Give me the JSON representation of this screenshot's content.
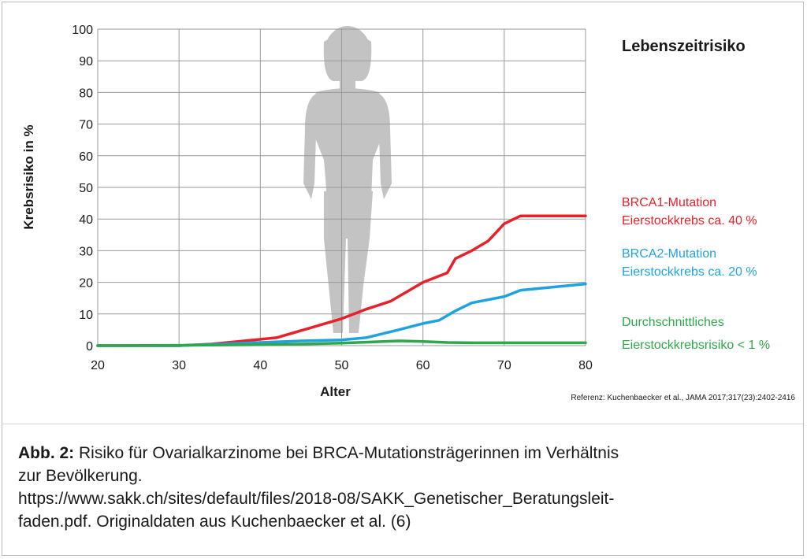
{
  "chart_data": {
    "type": "line",
    "title": "Lebenszeitrisiko",
    "xlabel": "Alter",
    "ylabel": "Krebsrisiko in %",
    "xlim": [
      20,
      80
    ],
    "ylim": [
      0,
      100
    ],
    "xticks": [
      20,
      30,
      40,
      50,
      60,
      70,
      80
    ],
    "yticks": [
      0,
      10,
      20,
      30,
      40,
      50,
      60,
      70,
      80,
      90,
      100
    ],
    "grid": true,
    "series": [
      {
        "name": "BRCA1-Mutation",
        "label_lines": [
          "BRCA1-Mutation",
          "Eierstockkrebs ca. 40 %"
        ],
        "color": "#e8202a",
        "x": [
          20,
          25,
          30,
          34,
          38,
          42,
          46,
          50,
          53,
          56,
          58,
          60,
          63,
          64,
          66,
          68,
          70,
          72,
          74,
          80
        ],
        "y": [
          0,
          0,
          0,
          0.5,
          1.5,
          2.5,
          5.5,
          8.5,
          11.5,
          14,
          17,
          20,
          23,
          27.5,
          30,
          33,
          38.5,
          41,
          41,
          41
        ]
      },
      {
        "name": "BRCA2-Mutation",
        "label_lines": [
          "BRCA2-Mutation",
          "Eierstockkrebs ca. 20 %"
        ],
        "color": "#1fa3e0",
        "x": [
          20,
          25,
          30,
          35,
          40,
          45,
          50,
          53,
          57,
          60,
          62,
          64,
          66,
          68,
          70,
          72,
          74,
          76,
          80
        ],
        "y": [
          0,
          0,
          0,
          0.5,
          1,
          1.5,
          1.8,
          2.5,
          5,
          7,
          8,
          11,
          13.5,
          14.5,
          15.5,
          17.5,
          18,
          18.5,
          19.5
        ]
      },
      {
        "name": "Durchschnittliches Eierstockkrebsrisiko",
        "label_lines": [
          "Durchschnittliches",
          "Eierstockkrebsrisiko < 1 %"
        ],
        "color": "#2da84a",
        "x": [
          20,
          30,
          40,
          45,
          50,
          53,
          57,
          60,
          63,
          66,
          70,
          75,
          80
        ],
        "y": [
          0,
          0.1,
          0.3,
          0.5,
          0.8,
          1.1,
          1.5,
          1.3,
          1.0,
          0.9,
          0.9,
          0.9,
          0.9
        ]
      }
    ],
    "reference": "Referenz: Kuchenbaecker et al., JAMA 2017;317(23):2402-2416"
  },
  "caption": {
    "label": "Abb. 2:",
    "line1": " Risiko für Ovarialkarzinome bei BRCA-Mutationsträgerinnen im Verhältnis",
    "line2": "zur Bevölkerung.",
    "line3": "https://www.sakk.ch/sites/default/files/2018-08/SAKK_Genetischer_Beratungsleit-",
    "line4": "faden.pdf. Originaldaten aus Kuchenbaecker et al. (6)"
  },
  "colors": {
    "grid": "#9a9a9a",
    "figure": "#c3c3c3",
    "text": "#1a1a1a"
  }
}
